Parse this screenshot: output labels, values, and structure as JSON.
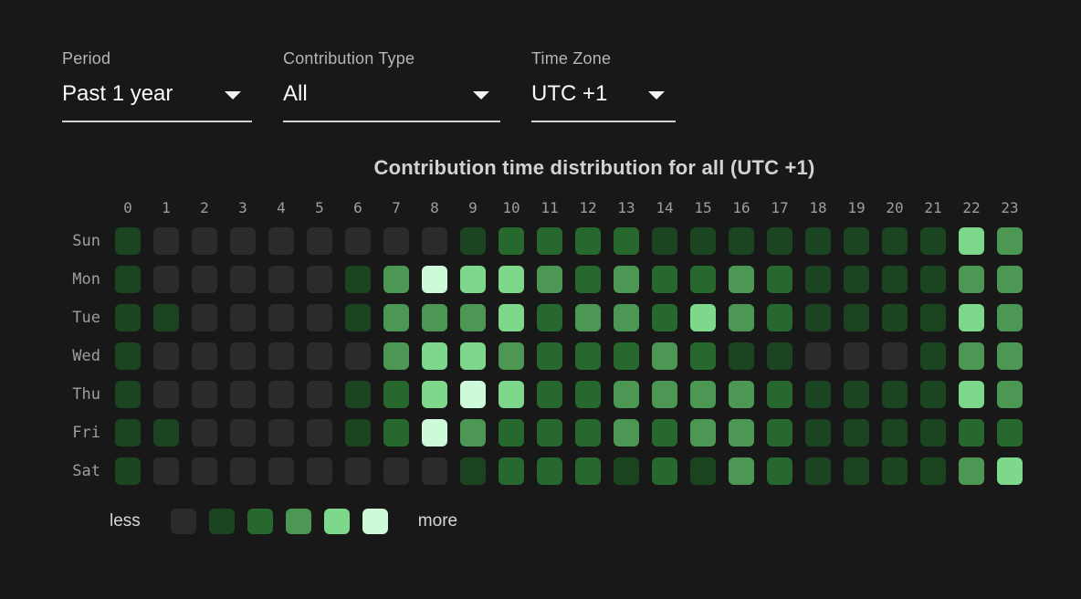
{
  "filters": {
    "period": {
      "label": "Period",
      "value": "Past 1 year"
    },
    "contribution_type": {
      "label": "Contribution Type",
      "value": "All"
    },
    "time_zone": {
      "label": "Time Zone",
      "value": "UTC +1"
    }
  },
  "chart_data": {
    "type": "heatmap",
    "title": "Contribution time distribution for all (UTC +1)",
    "x_label_hours": [
      "0",
      "1",
      "2",
      "3",
      "4",
      "5",
      "6",
      "7",
      "8",
      "9",
      "10",
      "11",
      "12",
      "13",
      "14",
      "15",
      "16",
      "17",
      "18",
      "19",
      "20",
      "21",
      "22",
      "23"
    ],
    "y_label_days": [
      "Sun",
      "Mon",
      "Tue",
      "Wed",
      "Thu",
      "Fri",
      "Sat"
    ],
    "legend": {
      "less_label": "less",
      "more_label": "more"
    },
    "palette": [
      "#2b2b2b",
      "#1b4421",
      "#27682e",
      "#4b9753",
      "#7ed88c",
      "#cdfad9"
    ],
    "palette_levels": [
      "0-none",
      "1-lowest",
      "2-low",
      "3-medium",
      "4-high",
      "5-highest"
    ],
    "matrix": [
      [
        1,
        0,
        0,
        0,
        0,
        0,
        0,
        0,
        0,
        1,
        2,
        2,
        2,
        2,
        1,
        1,
        1,
        1,
        1,
        1,
        1,
        1,
        4,
        3
      ],
      [
        1,
        0,
        0,
        0,
        0,
        0,
        1,
        3,
        5,
        4,
        4,
        3,
        2,
        3,
        2,
        2,
        3,
        2,
        1,
        1,
        1,
        1,
        3,
        3
      ],
      [
        1,
        1,
        0,
        0,
        0,
        0,
        1,
        3,
        3,
        3,
        4,
        2,
        3,
        3,
        2,
        4,
        3,
        2,
        1,
        1,
        1,
        1,
        4,
        3
      ],
      [
        1,
        0,
        0,
        0,
        0,
        0,
        0,
        3,
        4,
        4,
        3,
        2,
        2,
        2,
        3,
        2,
        1,
        1,
        0,
        0,
        0,
        1,
        3,
        3
      ],
      [
        1,
        0,
        0,
        0,
        0,
        0,
        1,
        2,
        4,
        5,
        4,
        2,
        2,
        3,
        3,
        3,
        3,
        2,
        1,
        1,
        1,
        1,
        4,
        3
      ],
      [
        1,
        1,
        0,
        0,
        0,
        0,
        1,
        2,
        5,
        3,
        2,
        2,
        2,
        3,
        2,
        3,
        3,
        2,
        1,
        1,
        1,
        1,
        2,
        2
      ],
      [
        1,
        0,
        0,
        0,
        0,
        0,
        0,
        0,
        0,
        1,
        2,
        2,
        2,
        1,
        2,
        1,
        3,
        2,
        1,
        1,
        1,
        1,
        3,
        4
      ]
    ]
  },
  "colors": {
    "background": "#181818",
    "empty_cell": "#2b2b2b",
    "max_green": "#cdfad9"
  }
}
